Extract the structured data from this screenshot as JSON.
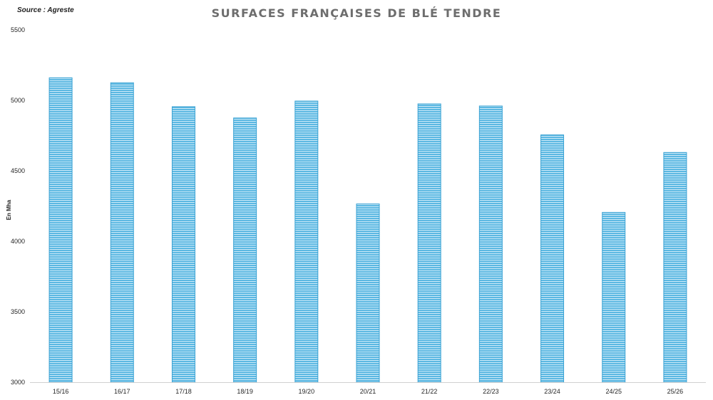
{
  "source": "Source : Agreste",
  "chart_data": {
    "type": "bar",
    "title": "SURFACES FRANÇAISES DE BLÉ TENDRE",
    "ylabel": "En Mha",
    "xlabel": "",
    "categories": [
      "15/16",
      "16/17",
      "17/18",
      "18/19",
      "19/20",
      "20/21",
      "21/22",
      "22/23",
      "23/24",
      "24/25",
      "25/26"
    ],
    "values": [
      5160,
      5125,
      4955,
      4875,
      4995,
      4265,
      4975,
      4960,
      4755,
      4205,
      4630
    ],
    "ylim": [
      3000,
      5500
    ],
    "yticks": [
      "3000",
      "3500",
      "4000",
      "4500",
      "5000",
      "5500"
    ],
    "grid": false,
    "legend": "none",
    "colors": {
      "bar": "#5cb8e2",
      "bar_edge": "#3aa2d3",
      "bar_stripe": "#cdeaf8"
    }
  }
}
